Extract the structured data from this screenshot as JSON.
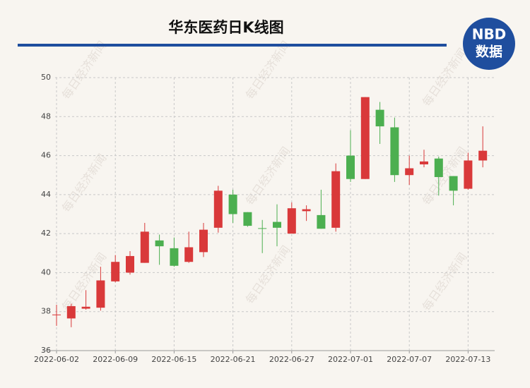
{
  "chart_data": {
    "type": "candlestick",
    "title": "华东医药日K线图",
    "logo": {
      "top": "NBD",
      "bottom": "数据"
    },
    "watermark": "每日经济新闻",
    "categories": [
      "2022-06-02",
      null,
      null,
      null,
      "2022-06-09",
      null,
      null,
      null,
      "2022-06-15",
      null,
      null,
      null,
      "2022-06-21",
      null,
      null,
      null,
      "2022-06-27",
      null,
      null,
      null,
      "2022-07-01",
      null,
      null,
      null,
      "2022-07-07",
      null,
      null,
      null,
      "2022-07-13",
      null
    ],
    "open": [
      37.82,
      37.65,
      38.15,
      38.2,
      39.55,
      40.0,
      40.5,
      41.65,
      41.25,
      40.55,
      41.05,
      42.3,
      44.0,
      43.1,
      42.28,
      42.6,
      42.0,
      43.15,
      42.95,
      42.3,
      46.0,
      44.8,
      48.35,
      47.45,
      45.0,
      45.55,
      45.85,
      44.95,
      44.3,
      45.75
    ],
    "high": [
      38.35,
      38.4,
      39.1,
      40.3,
      40.9,
      41.1,
      42.55,
      41.95,
      41.8,
      42.1,
      42.55,
      44.45,
      44.25,
      43.1,
      42.7,
      43.5,
      43.6,
      43.45,
      44.25,
      45.6,
      47.3,
      49.0,
      48.75,
      47.95,
      46.0,
      46.3,
      45.95,
      44.95,
      46.15,
      47.5
    ],
    "low": [
      37.27,
      37.2,
      38.1,
      38.05,
      39.5,
      39.9,
      40.5,
      40.4,
      40.3,
      40.5,
      40.8,
      42.05,
      42.55,
      42.35,
      41.0,
      41.35,
      42.0,
      42.65,
      42.25,
      42.1,
      44.65,
      44.8,
      46.6,
      44.65,
      44.5,
      45.4,
      43.95,
      43.45,
      44.25,
      45.4
    ],
    "close": [
      37.85,
      38.28,
      38.25,
      39.6,
      40.55,
      40.85,
      42.1,
      41.35,
      40.35,
      41.3,
      42.2,
      44.2,
      43.0,
      42.4,
      42.25,
      42.3,
      43.3,
      43.25,
      42.25,
      45.2,
      44.8,
      49.0,
      47.5,
      45.0,
      45.35,
      45.7,
      44.9,
      44.2,
      45.75,
      46.25
    ],
    "up_color": "#d9393a",
    "down_color": "#4caf50",
    "ylim": [
      36,
      50
    ],
    "yticks": [
      36,
      38,
      40,
      42,
      44,
      46,
      48,
      50
    ],
    "grid": true
  }
}
